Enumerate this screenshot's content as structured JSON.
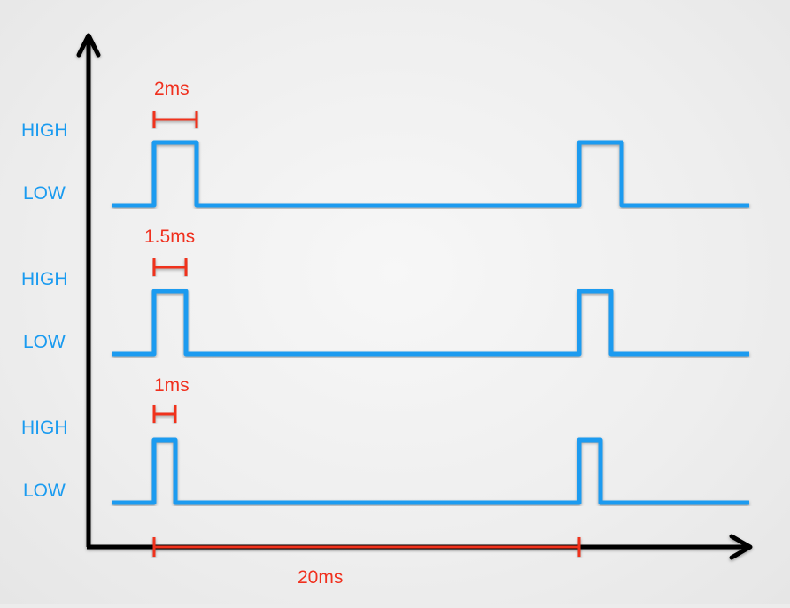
{
  "colors": {
    "signal": "#1a9bf0",
    "annotation": "#f0301e",
    "axis": "#000000"
  },
  "axes": {
    "x_arrow_icon": "arrow-right-icon",
    "y_arrow_icon": "arrow-up-icon"
  },
  "period_label": "20ms",
  "signals": [
    {
      "high_label": "HIGH",
      "low_label": "LOW",
      "pulse_label": "2ms",
      "pulse_ms": 2
    },
    {
      "high_label": "HIGH",
      "low_label": "LOW",
      "pulse_label": "1.5ms",
      "pulse_ms": 1.5
    },
    {
      "high_label": "HIGH",
      "low_label": "LOW",
      "pulse_label": "1ms",
      "pulse_ms": 1
    }
  ],
  "period_ms": 20
}
